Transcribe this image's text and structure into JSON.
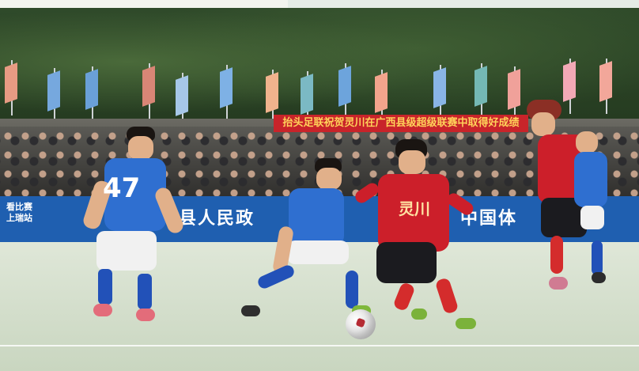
{
  "scene": {
    "banner_text": "抬头足联祝贺灵川在广西县级超级联赛中取得好成绩",
    "adboard_left_line1": "看比赛",
    "adboard_left_line2": "上瑞站",
    "adboard_middle_text": "灵川县人民政",
    "adboard_right_text": "中国体",
    "left_player_number": "47",
    "red_player_chest_text": "灵川"
  },
  "colors": {
    "team_blue": "#2f6fd0",
    "team_red": "#cc1f2a",
    "banner_red": "#c8242a",
    "adboard_blue": "#1f5fb0"
  }
}
